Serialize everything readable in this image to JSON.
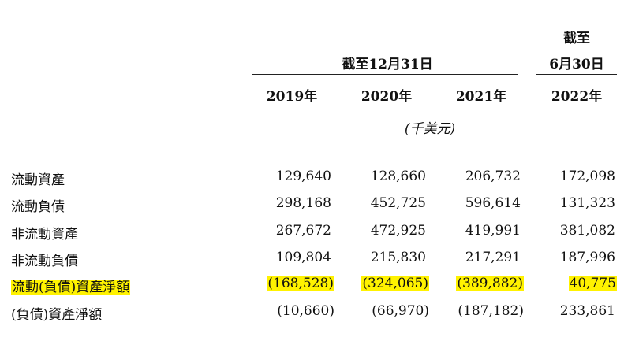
{
  "header": {
    "group_label": "截至12月31日",
    "right_label_line1": "截至",
    "right_label_line2": "6月30日",
    "years": [
      "2019年",
      "2020年",
      "2021年",
      "2022年"
    ],
    "unit": "(千美元)"
  },
  "rows": [
    {
      "label": "流動資產",
      "values": [
        "129,640",
        "128,660",
        "206,732",
        "172,098"
      ],
      "highlight": false
    },
    {
      "label": "流動負債",
      "values": [
        "298,168",
        "452,725",
        "596,614",
        "131,323"
      ],
      "highlight": false
    },
    {
      "label": "非流動資產",
      "values": [
        "267,672",
        "472,925",
        "419,991",
        "381,082"
      ],
      "highlight": false
    },
    {
      "label": "非流動負債",
      "values": [
        "109,804",
        "215,830",
        "217,291",
        "187,996"
      ],
      "highlight": false
    },
    {
      "label": "流動(負債)資產淨額",
      "values": [
        "(168,528)",
        "(324,065)",
        "(389,882)",
        "40,775"
      ],
      "highlight": true
    },
    {
      "label": "(負債)資產淨額",
      "values": [
        "(10,660)",
        "(66,970)",
        "(187,182)",
        "233,861"
      ],
      "highlight": false
    }
  ],
  "colors": {
    "highlight": "#fff200"
  }
}
